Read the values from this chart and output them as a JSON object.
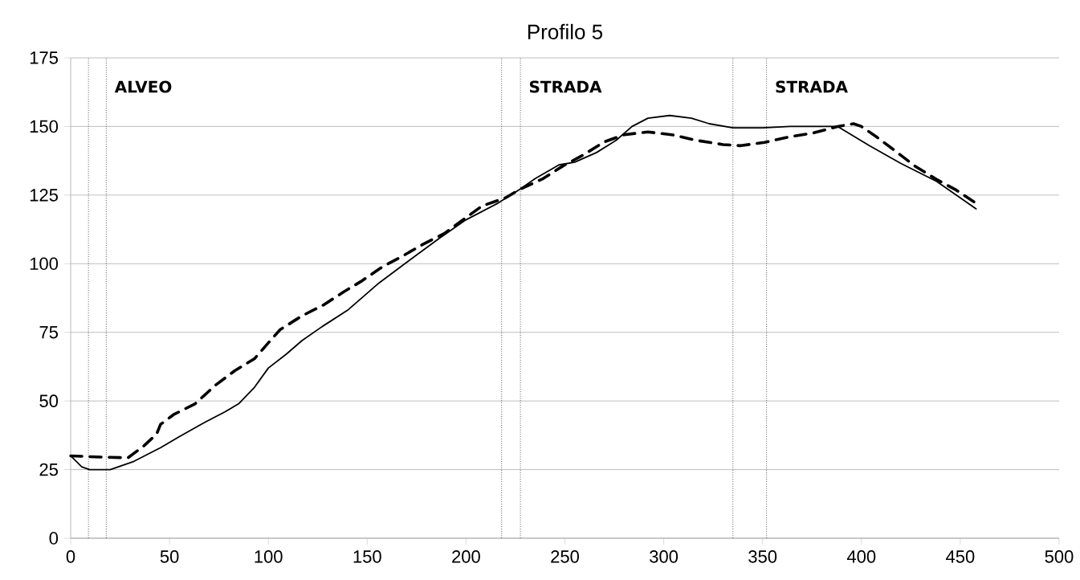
{
  "chart_data": {
    "type": "line",
    "title": "Profilo 5",
    "xlim": [
      0,
      500
    ],
    "xticks": [
      0,
      50,
      100,
      150,
      200,
      250,
      300,
      350,
      400,
      450,
      500
    ],
    "ylim": [
      0,
      175
    ],
    "yticks": [
      0,
      25,
      50,
      75,
      100,
      125,
      150,
      175
    ],
    "grid": "y",
    "series": [
      {
        "color": "#000000",
        "line_style": "solid",
        "x": [
          0,
          5.6,
          9.6,
          20,
          32,
          45.5,
          55,
          66,
          78,
          85,
          93,
          100,
          109,
          117,
          127,
          140,
          156,
          170,
          186,
          200,
          216,
          227,
          235,
          247,
          255,
          266,
          276,
          284,
          292,
          303,
          314,
          323,
          335,
          350,
          364,
          388,
          404,
          420,
          438,
          458
        ],
        "values": [
          30,
          26,
          25,
          25,
          28,
          33,
          37,
          41.5,
          46,
          49,
          55,
          62,
          67,
          72,
          77,
          83,
          93,
          100.5,
          109,
          116,
          122,
          127,
          131,
          136,
          137,
          140.5,
          145,
          150,
          153,
          154,
          153,
          151,
          149.5,
          149.5,
          150,
          150,
          143,
          136.5,
          130,
          120
        ]
      },
      {
        "color": "#000000",
        "line_style": "dashed",
        "x": [
          0,
          17,
          29,
          37,
          43.5,
          45.5,
          52,
          63,
          73,
          83,
          93,
          101,
          106,
          117,
          128,
          138,
          147,
          158,
          167,
          178,
          189,
          208,
          220,
          227,
          239,
          249,
          259,
          270,
          280,
          292,
          304,
          316,
          330,
          339,
          351,
          364,
          375,
          388,
          396,
          400,
          408,
          418,
          427,
          438,
          448,
          458
        ],
        "values": [
          30,
          29.5,
          29.3,
          33.6,
          38,
          41.5,
          45,
          49,
          55.6,
          61,
          65.4,
          72,
          76,
          81,
          85,
          89.7,
          93.6,
          99,
          102.4,
          107,
          111,
          121,
          124,
          127,
          131,
          135.6,
          139.5,
          144.4,
          147,
          148,
          147,
          145,
          143.4,
          143,
          144.2,
          146.3,
          147.5,
          150,
          151,
          150,
          146,
          140.6,
          135.6,
          130.7,
          126.8,
          122
        ]
      }
    ],
    "ref_lines": [
      {
        "axis": "x",
        "value": 9,
        "color": "#000000",
        "line_style": "dotted"
      },
      {
        "axis": "x",
        "value": 18,
        "color": "#000000",
        "line_style": "dotted",
        "label": "ALVEO"
      },
      {
        "axis": "x",
        "value": 218,
        "color": "#000000",
        "line_style": "dotted"
      },
      {
        "axis": "x",
        "value": 227.5,
        "color": "#000000",
        "line_style": "dotted",
        "label": "STRADA"
      },
      {
        "axis": "x",
        "value": 335,
        "color": "#000000",
        "line_style": "dotted"
      },
      {
        "axis": "x",
        "value": 352,
        "color": "#000000",
        "line_style": "dotted",
        "label": "STRADA"
      }
    ]
  }
}
